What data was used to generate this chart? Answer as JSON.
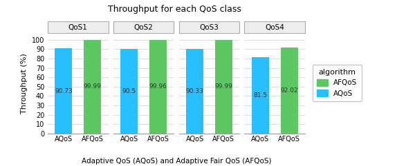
{
  "title": "Throughput for each QoS class",
  "xlabel": "Adaptive QoS (AQoS) and Adaptive Fair QoS (AFQoS)",
  "ylabel": "Throughput (%)",
  "facets": [
    "QoS1",
    "QoS2",
    "QoS3",
    "QoS4"
  ],
  "categories": [
    "AQoS",
    "AFQoS"
  ],
  "values": [
    [
      90.73,
      99.99
    ],
    [
      90.5,
      99.96
    ],
    [
      90.33,
      99.99
    ],
    [
      81.5,
      92.02
    ]
  ],
  "bar_colors": [
    "#29BFFF",
    "#5DC863"
  ],
  "legend_labels": [
    "AFQoS",
    "AQoS"
  ],
  "legend_colors": [
    "#5DC863",
    "#29BFFF"
  ],
  "ylim": [
    0,
    107
  ],
  "yticks": [
    0,
    10,
    20,
    30,
    40,
    50,
    60,
    70,
    80,
    90,
    100
  ],
  "bg_color": "#FFFFFF",
  "panel_bg": "#FFFFFF",
  "grid_color": "#DDDDDD",
  "facet_bg": "#EEEEEE",
  "facet_edge": "#AAAAAA",
  "legend_title": "algorithm",
  "label_color": "#333333"
}
